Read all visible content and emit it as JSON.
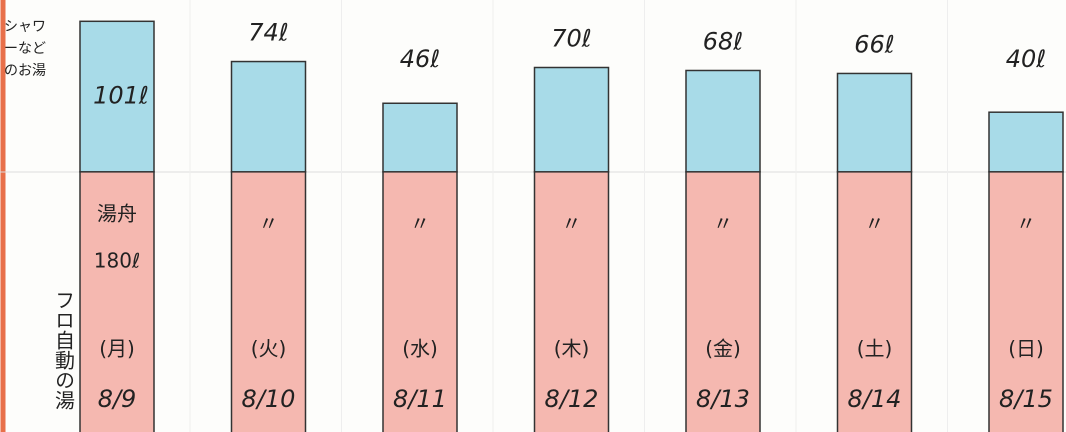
{
  "chart_data": {
    "type": "stacked_bar",
    "categories": [
      "(月)",
      "(火)",
      "(水)",
      "(木)",
      "(金)",
      "(土)",
      "(日)"
    ],
    "dates": [
      "8/9",
      "8/10",
      "8/11",
      "8/12",
      "8/13",
      "8/14",
      "8/15"
    ],
    "annotation": "フロ自動の湯",
    "series": [
      {
        "name": "湯舟",
        "color": "#f5b8b0",
        "values": [
          180,
          180,
          180,
          180,
          180,
          180,
          180
        ],
        "value_labels": [
          "180ℓ",
          "〃",
          "〃",
          "〃",
          "〃",
          "〃",
          "〃"
        ]
      },
      {
        "name": "シャワーなどのお湯",
        "color": "#a8dbe8",
        "values": [
          101,
          74,
          46,
          70,
          68,
          66,
          40
        ],
        "value_labels": [
          "101ℓ",
          "74ℓ",
          "46ℓ",
          "70ℓ",
          "68ℓ",
          "66ℓ",
          "40ℓ"
        ]
      }
    ]
  }
}
